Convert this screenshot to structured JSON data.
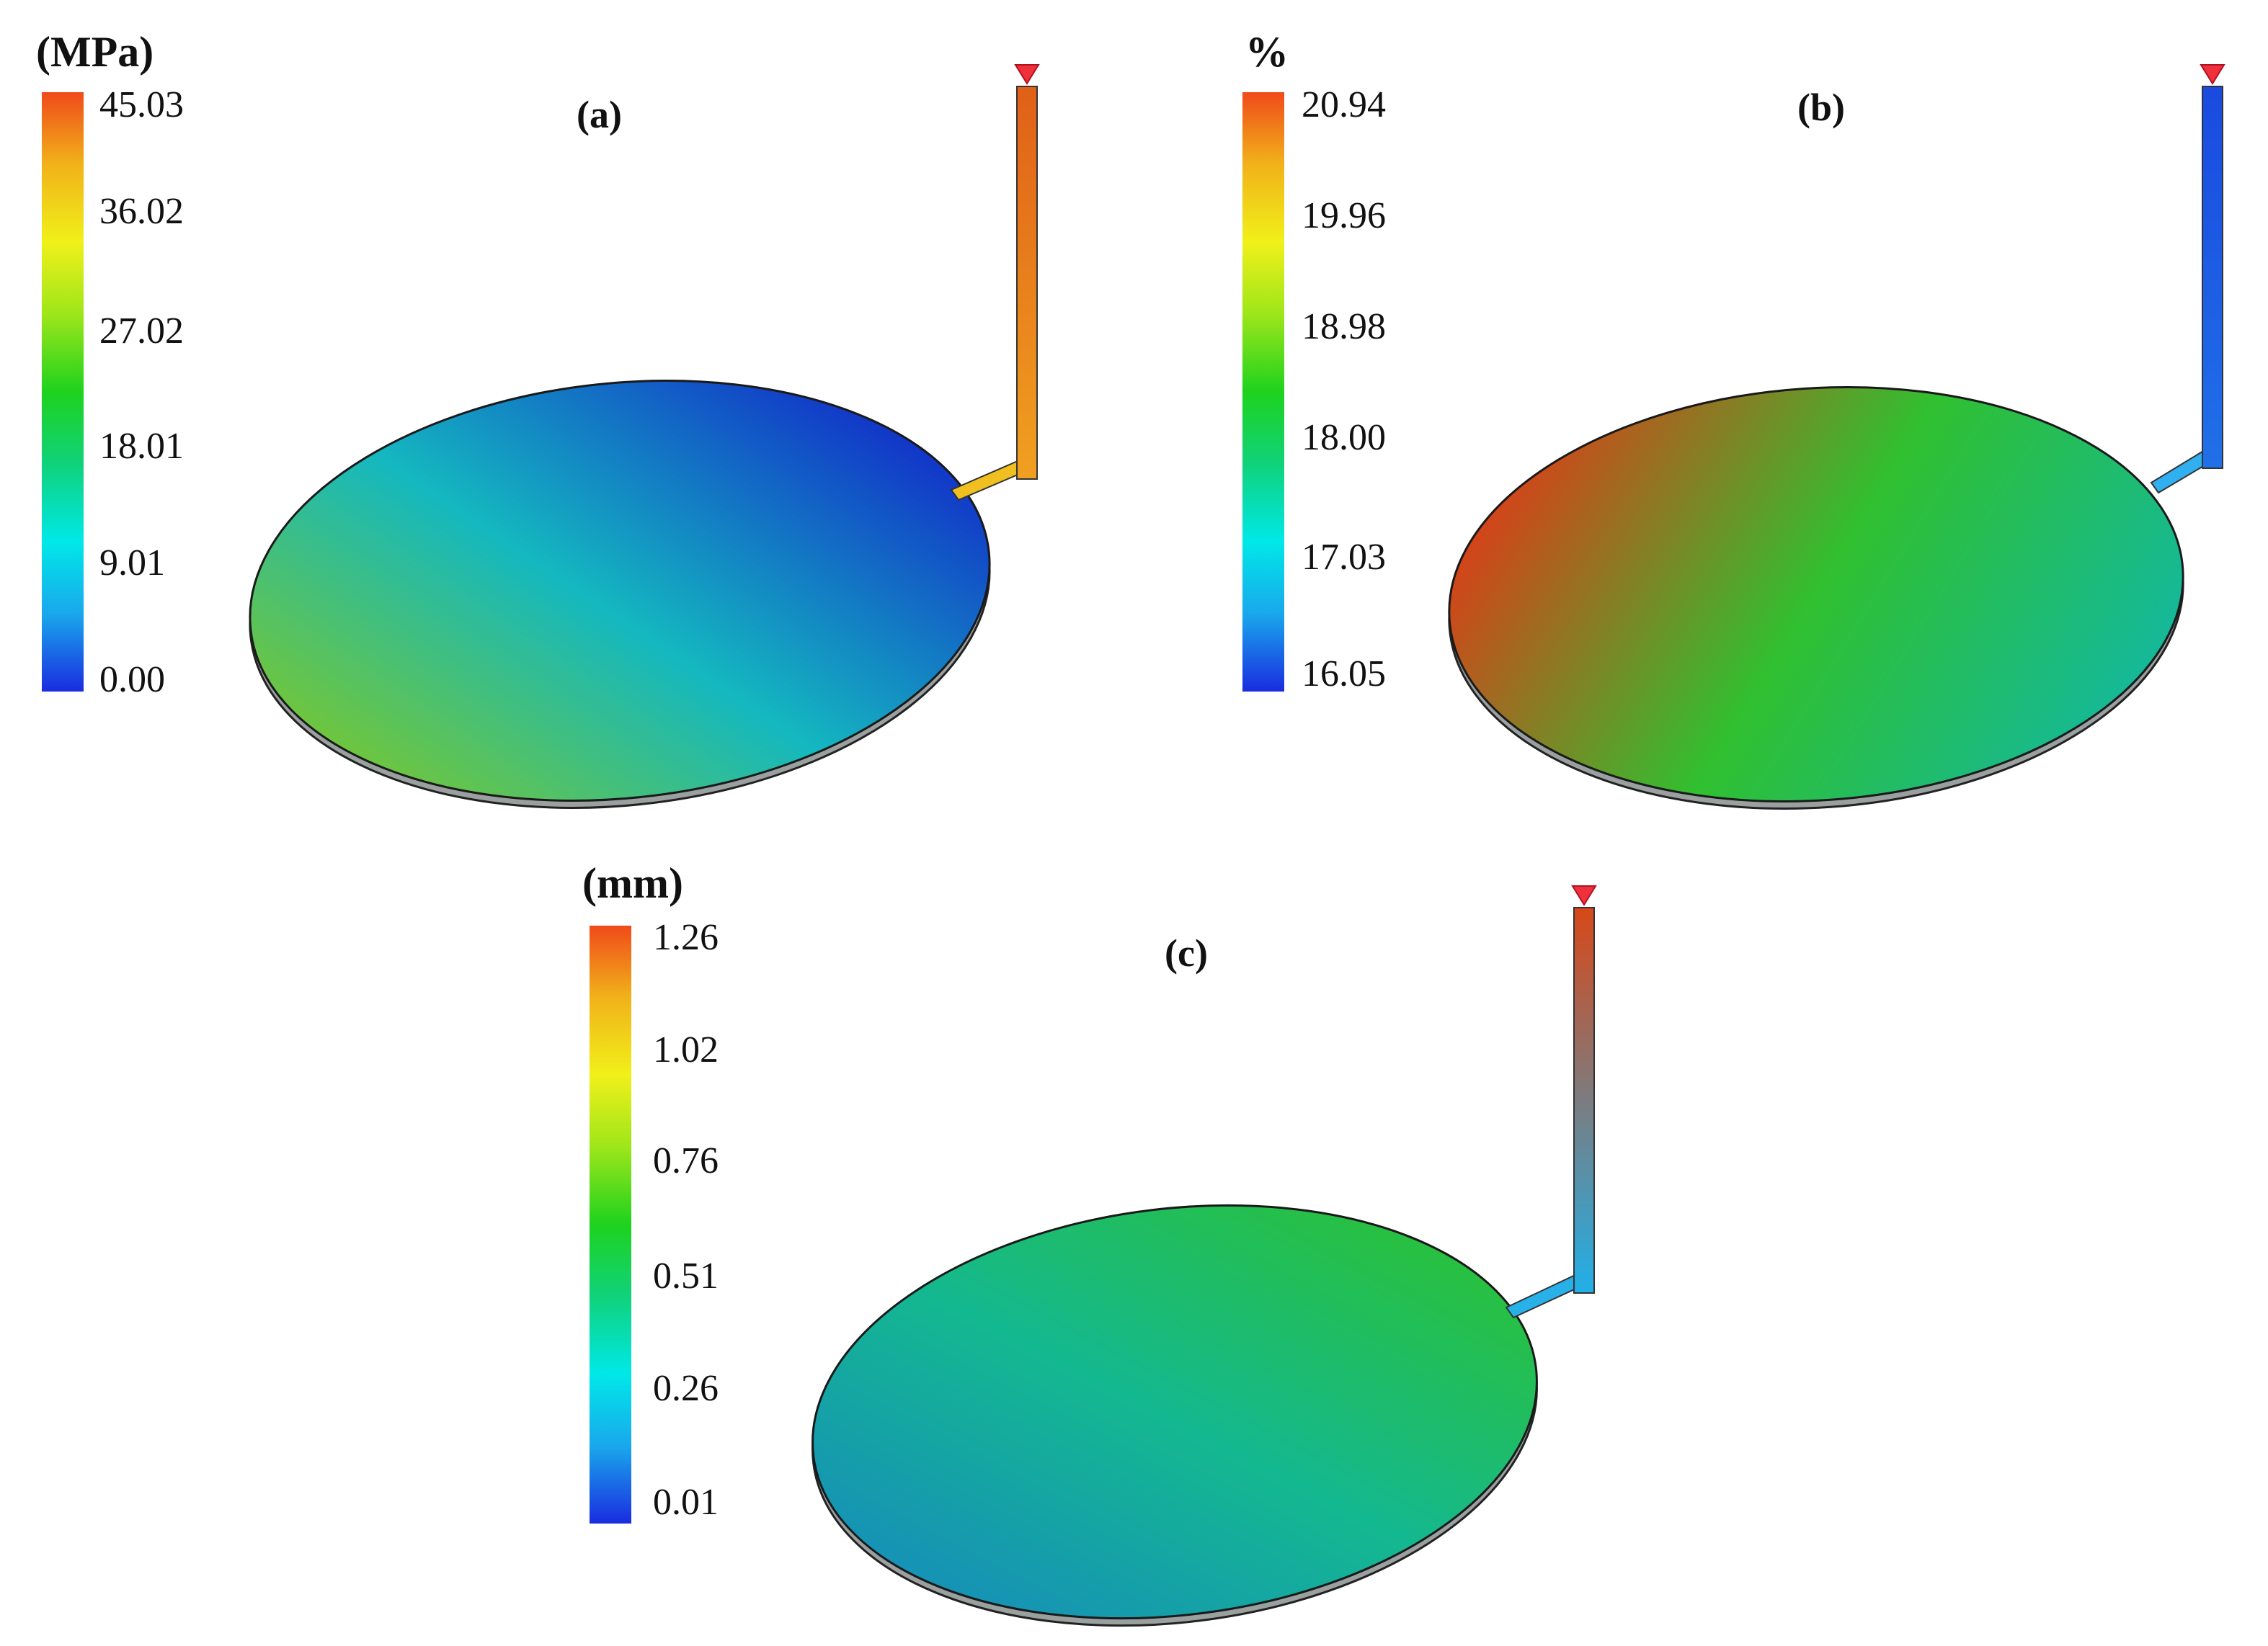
{
  "colormap": [
    "#1a2ce0",
    "#19a8ec",
    "#00e8e8",
    "#10d27a",
    "#1ed21e",
    "#9ee61a",
    "#f1f01a",
    "#f1b21a",
    "#f04a1a"
  ],
  "panels": [
    {
      "label": "(a)",
      "unit": "(MPa)",
      "ticks": [
        "45.03",
        "36.02",
        "27.02",
        "18.01",
        "9.01",
        "0.00"
      ],
      "colors": {
        "plate_low": "#1236c8",
        "plate_mid": "#14b8c0",
        "plate_high": "#7ec828",
        "runner": "#f0c020",
        "sprue_low": "#f0a020",
        "sprue_high": "#e06018"
      }
    },
    {
      "label": "(b)",
      "unit": "%",
      "ticks": [
        "20.94",
        "19.96",
        "18.98",
        "18.00",
        "17.03",
        "16.05"
      ],
      "colors": {
        "plate_low": "#12b8a0",
        "plate_mid": "#30c030",
        "plate_high": "#e03a18",
        "runner": "#30b0f0",
        "sprue_low": "#2070e8",
        "sprue_high": "#1a4ae0"
      }
    },
    {
      "label": "(c)",
      "unit": "(mm)",
      "ticks": [
        "1.26",
        "1.02",
        "0.76",
        "0.51",
        "0.26",
        "0.01"
      ],
      "colors": {
        "plate_low": "#1690b8",
        "plate_mid": "#14b890",
        "plate_high": "#28c040",
        "runner": "#28b0e8",
        "sprue_low": "#20b0e8",
        "sprue_high": "#d84818"
      }
    }
  ]
}
